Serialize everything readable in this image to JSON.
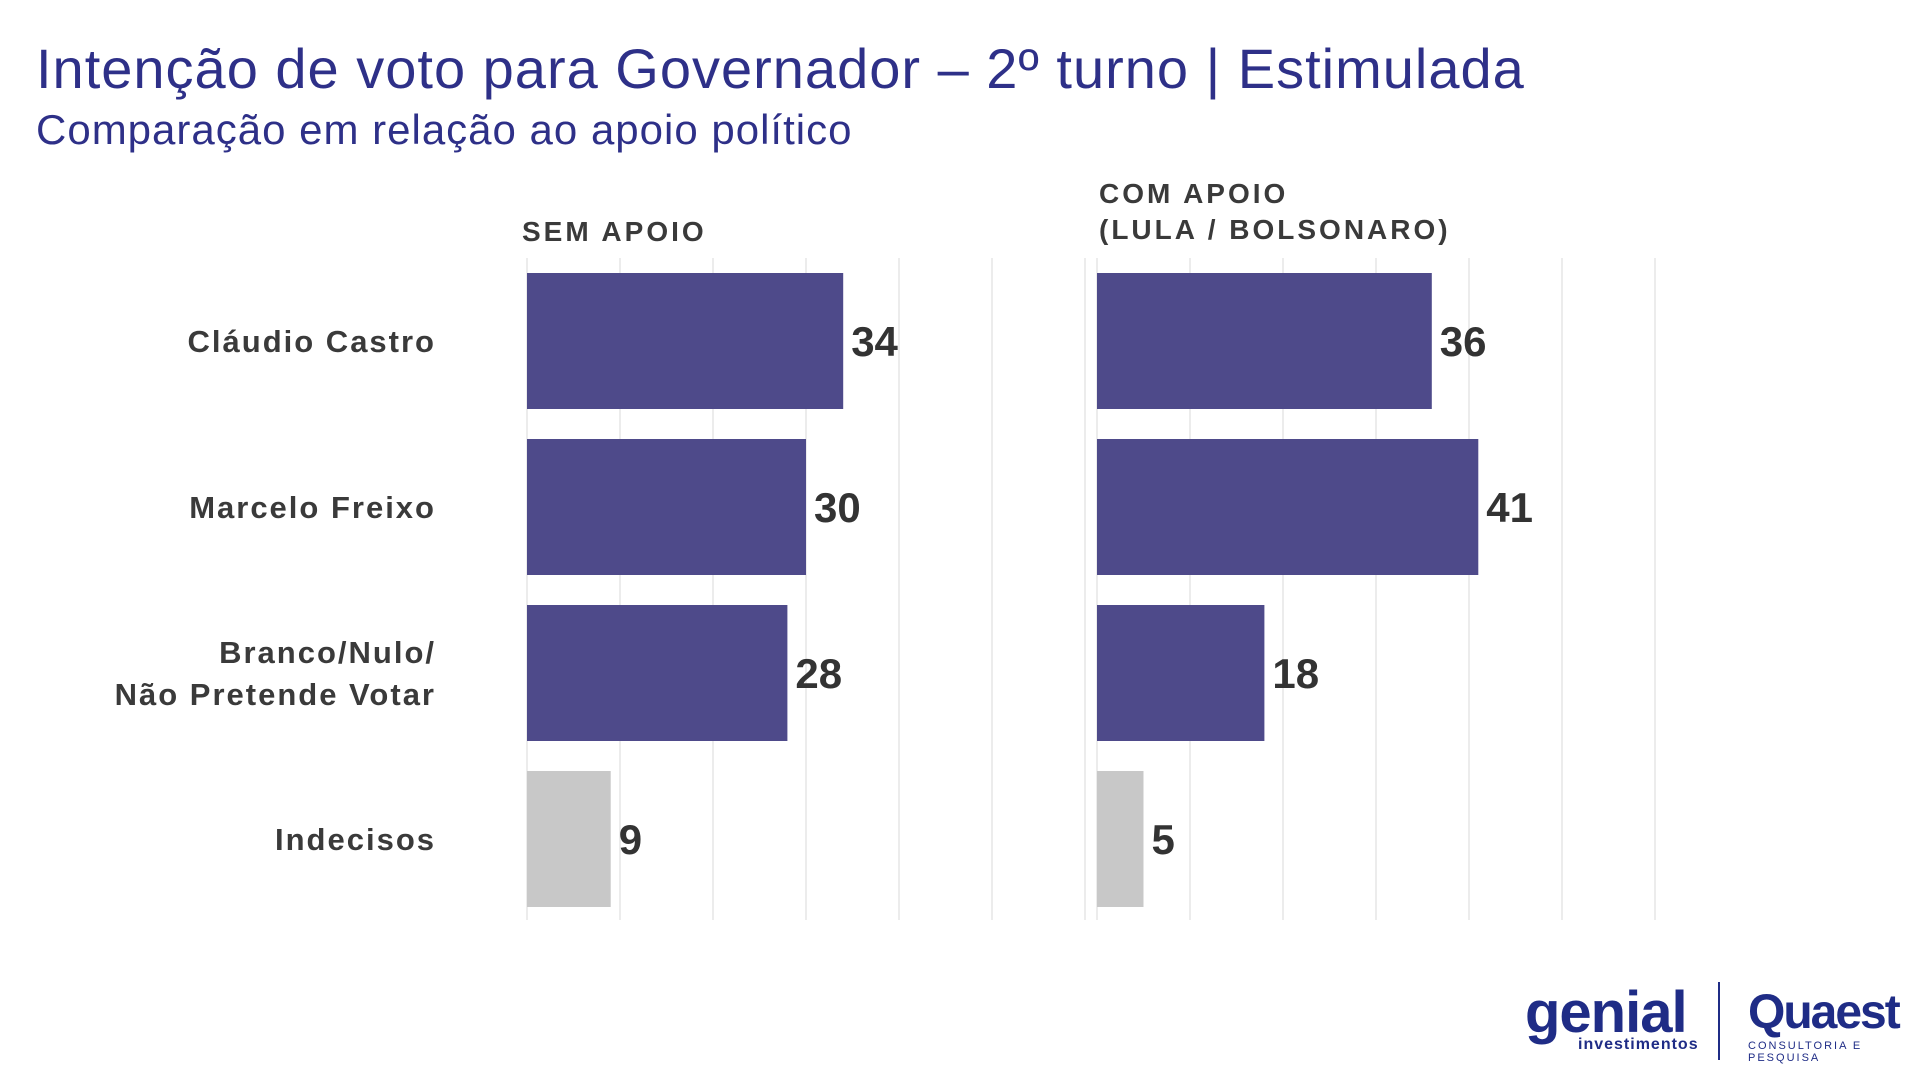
{
  "title": "Intenção de voto para Governador – 2º turno | Estimulada",
  "subtitle": "Comparação em relação ao apoio político",
  "chart_data": {
    "type": "bar",
    "orientation": "horizontal",
    "categories": [
      "Cláudio Castro",
      "Marcelo Freixo",
      "Branco/Nulo/\nNão Pretende Votar",
      "Indecisos"
    ],
    "series": [
      {
        "name": "SEM APOIO",
        "values": [
          34,
          30,
          28,
          9
        ]
      },
      {
        "name": "COM APOIO\n(LULA / BOLSONARO)",
        "values": [
          36,
          41,
          18,
          5
        ]
      }
    ],
    "xlim": [
      0,
      60
    ],
    "grid": true,
    "colors": {
      "main": "#4e4a8a",
      "undecided": "#c8c8c8",
      "grid": "#e6e6e6"
    }
  },
  "logos": {
    "genial": "genial",
    "genial_sub": "investimentos",
    "quaest": "Quaest",
    "quaest_sub": "CONSULTORIA E PESQUISA"
  }
}
